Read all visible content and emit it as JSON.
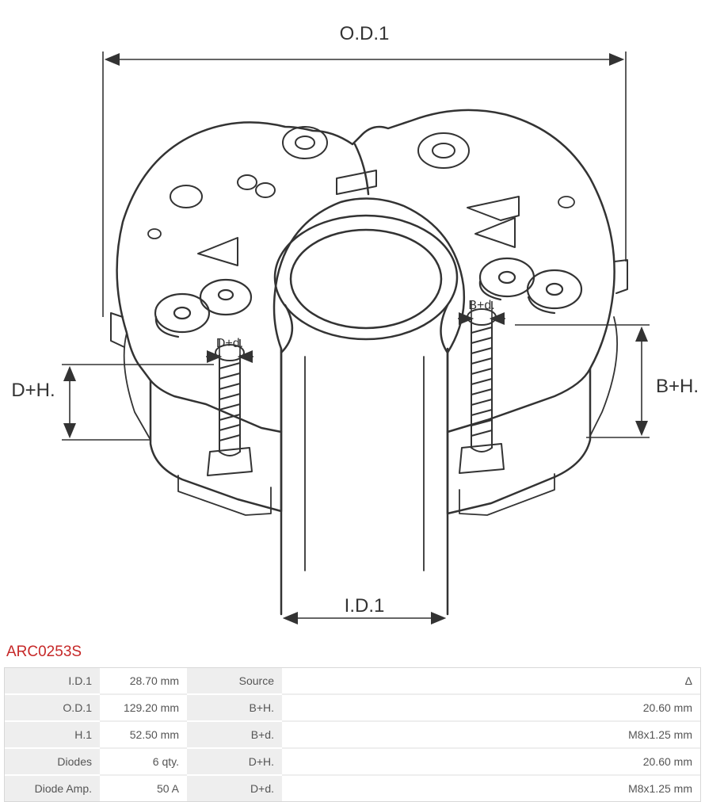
{
  "partNumber": "ARC0253S",
  "diagram": {
    "labels": {
      "od1": "O.D.1",
      "id1": "I.D.1",
      "dh_left": "D+H.",
      "bh_right": "B+H.",
      "dd": "D+d.",
      "bd": "B+d."
    },
    "stroke": "#333333",
    "strokeWidth": 2.5,
    "dimStrokeWidth": 1.6
  },
  "specs": {
    "rows": [
      {
        "l1": "I.D.1",
        "v1": "28.70 mm",
        "l2": "Source",
        "v2": "Δ"
      },
      {
        "l1": "O.D.1",
        "v1": "129.20 mm",
        "l2": "B+H.",
        "v2": "20.60 mm"
      },
      {
        "l1": "H.1",
        "v1": "52.50 mm",
        "l2": "B+d.",
        "v2": "M8x1.25 mm"
      },
      {
        "l1": "Diodes",
        "v1": "6 qty.",
        "l2": "D+H.",
        "v2": "20.60 mm"
      },
      {
        "l1": "Diode Amp.",
        "v1": "50 A",
        "l2": "D+d.",
        "v2": "M8x1.25 mm"
      }
    ]
  },
  "colors": {
    "partNumber": "#c62828",
    "labelBg": "#eeeeee",
    "valueBg": "#ffffff",
    "border": "#d8d8d8",
    "text": "#555555"
  }
}
